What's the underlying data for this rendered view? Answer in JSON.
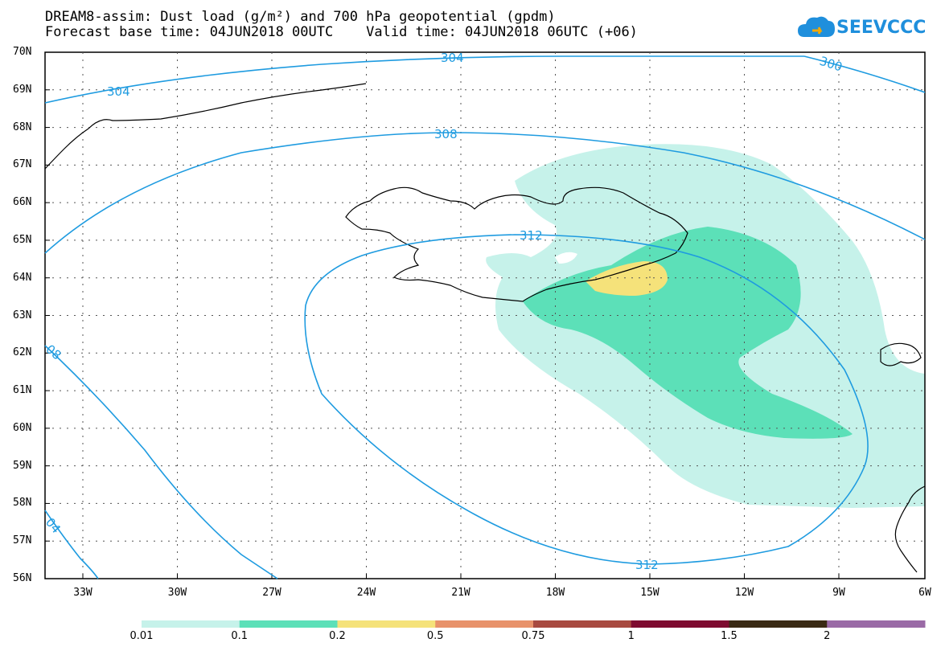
{
  "title": {
    "line1": "DREAM8-assim: Dust load (g/m²) and 700 hPa geopotential (gpdm)",
    "line2": "Forecast base time: 04JUN2018 00UTC    Valid time: 04JUN2018 06UTC (+06)"
  },
  "logo": {
    "text": "SEEVCCC"
  },
  "axes": {
    "lat_labels": [
      "70N",
      "69N",
      "68N",
      "67N",
      "66N",
      "65N",
      "64N",
      "63N",
      "62N",
      "61N",
      "60N",
      "59N",
      "58N",
      "57N",
      "56N"
    ],
    "lon_labels": [
      "33W",
      "30W",
      "27W",
      "24W",
      "21W",
      "18W",
      "15W",
      "12W",
      "9W",
      "6W"
    ]
  },
  "contours": {
    "labels": [
      "304",
      "304",
      "300",
      "308",
      "08",
      "312",
      "312",
      "04"
    ]
  },
  "colorbar": {
    "labels": [
      "0.01",
      "0.1",
      "0.2",
      "0.5",
      "0.75",
      "1",
      "1.5",
      "2"
    ],
    "colors": [
      "#c6f2ea",
      "#5ce0b8",
      "#f5e27a",
      "#e8926a",
      "#a84a40",
      "#7e0b30",
      "#3a2a14",
      "#9a6aa6"
    ]
  },
  "colors": {
    "contour": "#1e9be0",
    "dust_low": "#c6f2ea",
    "dust_mid": "#5ce0b8",
    "dust_high": "#f5e27a"
  }
}
